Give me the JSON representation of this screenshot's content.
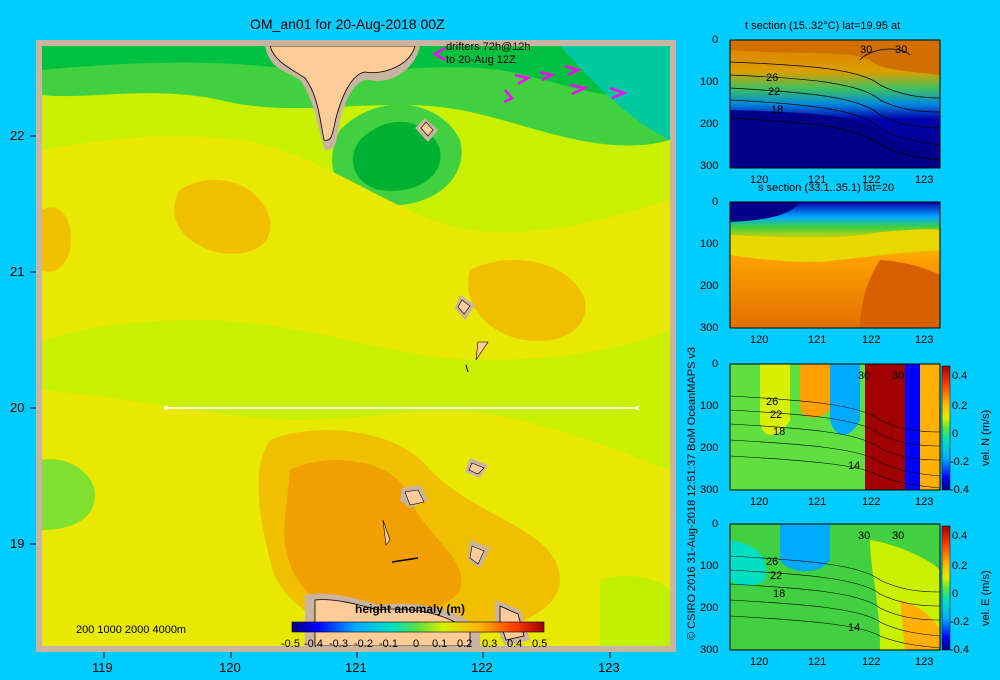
{
  "title": "OM_an01 for 20-Aug-2018 00Z",
  "map": {
    "x_ticks": [
      "119",
      "120",
      "121",
      "122",
      "123"
    ],
    "y_ticks": [
      "22",
      "21",
      "20",
      "19"
    ],
    "drifter_label_1": "drifters 72h@12h",
    "drifter_label_2": "to 20-Aug 12Z",
    "depth_legend": "200 1000 2000 4000m",
    "colorbar_title": "height anomaly (m)",
    "colorbar_ticks": [
      "-0.5",
      "-0.4",
      "-0.3",
      "-0.2",
      "-0.1",
      "0",
      "0.1",
      "0.2",
      "0.3",
      "0.4",
      "0.5"
    ],
    "section_lat": 20,
    "section_lon_range": [
      119.5,
      123.2
    ]
  },
  "credit": "© CSIRO 2016  31-Aug-2018 12:51:37 BoM OceanMAPS v3",
  "panels": [
    {
      "title": "t section (15..32°C) lat=19.95 at",
      "y_ticks": [
        "0",
        "100",
        "200",
        "300"
      ],
      "x_ticks": [
        "120",
        "121",
        "122",
        "123"
      ],
      "contour_labels": [
        "30",
        "30",
        "26",
        "22",
        "18"
      ]
    },
    {
      "title": "s section (33.1..35.1) lat=20",
      "y_ticks": [
        "0",
        "100",
        "200",
        "300"
      ],
      "x_ticks": [
        "120",
        "121",
        "122",
        "123"
      ]
    },
    {
      "title": "",
      "y_ticks": [
        "0",
        "100",
        "200",
        "300"
      ],
      "x_ticks": [
        "120",
        "121",
        "122",
        "123"
      ],
      "contour_labels": [
        "30",
        "30",
        "26",
        "22",
        "18",
        "14"
      ],
      "colorbar_label": "vel. N (m/s)",
      "colorbar_ticks": [
        "0.4",
        "0.2",
        "0",
        "-0.2",
        "-0.4"
      ]
    },
    {
      "title": "",
      "y_ticks": [
        "0",
        "100",
        "200",
        "300"
      ],
      "x_ticks": [
        "120",
        "121",
        "122",
        "123"
      ],
      "contour_labels": [
        "30",
        "30",
        "26",
        "22",
        "18",
        "14"
      ],
      "colorbar_label": "vel. E (m/s)",
      "colorbar_ticks": [
        "0.4",
        "0.2",
        "0",
        "-0.2",
        "-0.4"
      ]
    }
  ],
  "colors": {
    "background": "#00ccff",
    "land": "#ffcc99",
    "frame": "#c8b4a0",
    "drifter": "#ff00ff"
  }
}
